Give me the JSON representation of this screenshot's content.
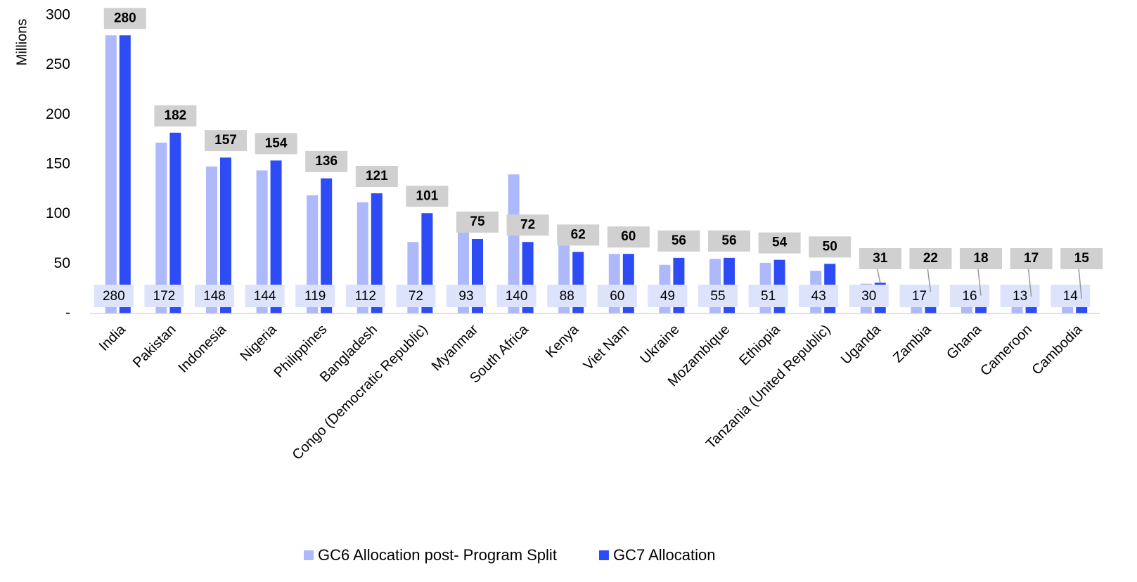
{
  "chart_data": {
    "type": "bar",
    "y_label": "Millions",
    "categories": [
      "India",
      "Pakistan",
      "Indonesia",
      "Nigeria",
      "Philippines",
      "Bangladesh",
      "Congo (Democratic Republic)",
      "Myanmar",
      "South Africa",
      "Kenya",
      "Viet Nam",
      "Ukraine",
      "Mozambique",
      "Ethiopia",
      "Tanzania (United Republic)",
      "Uganda",
      "Zambia",
      "Ghana",
      "Cameroon",
      "Cambodia"
    ],
    "series": [
      {
        "name": "GC6 Allocation post- Program Split",
        "color": "#adb9fa",
        "values": [
          280,
          172,
          148,
          144,
          119,
          112,
          72,
          93,
          140,
          88,
          60,
          49,
          55,
          51,
          43,
          30,
          17,
          16,
          13,
          14
        ]
      },
      {
        "name": "GC7 Allocation",
        "color": "#2e4cf5",
        "values": [
          280,
          182,
          157,
          154,
          136,
          121,
          101,
          75,
          72,
          62,
          60,
          56,
          56,
          54,
          50,
          31,
          22,
          18,
          17,
          15
        ]
      }
    ],
    "ylim": [
      0,
      300
    ],
    "yticks": [
      {
        "value": 0,
        "label": "-"
      },
      50,
      100,
      150,
      200,
      250,
      300
    ],
    "grid": false,
    "legend": "bottom"
  }
}
